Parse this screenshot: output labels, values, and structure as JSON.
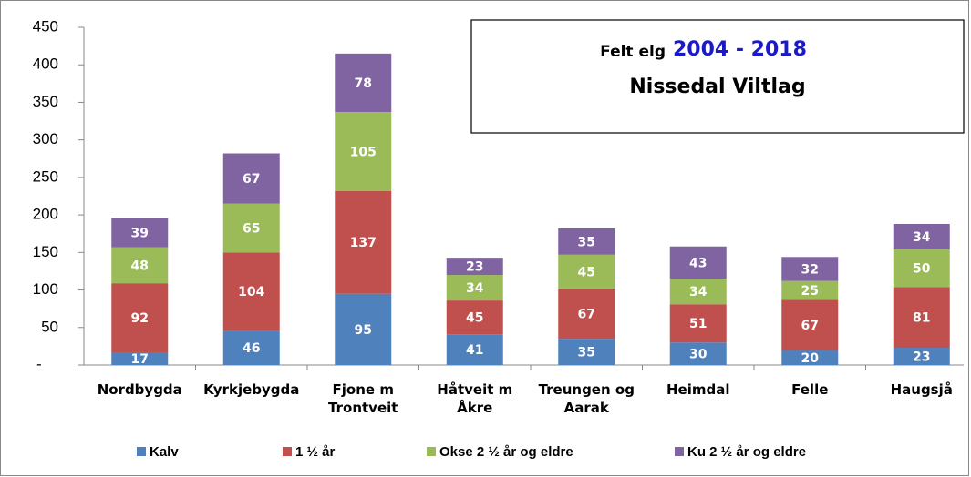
{
  "chart_data": {
    "type": "stacked_bar",
    "title": "Felt elg",
    "title_years": "2004 - 2018",
    "subtitle": "Nissedal Viltlag",
    "categories": [
      "Nordbygda",
      "Kyrkjebygda",
      "Fjone m\nTrontveit",
      "Håtveit m\nÅkre",
      "Treungen og\nAarak",
      "Heimdal",
      "Felle",
      "Haugsjå"
    ],
    "series": [
      {
        "name": "Kalv",
        "color": "#4f81bd",
        "values": [
          17,
          46,
          95,
          41,
          35,
          30,
          20,
          23
        ]
      },
      {
        "name": "1 ½ år",
        "color": "#c0504d",
        "values": [
          92,
          104,
          137,
          45,
          67,
          51,
          67,
          81
        ]
      },
      {
        "name": "Okse 2 ½ år og eldre",
        "color": "#9bbb59",
        "values": [
          48,
          65,
          105,
          34,
          45,
          34,
          25,
          50
        ]
      },
      {
        "name": "Ku 2 ½ år og eldre",
        "color": "#8064a2",
        "values": [
          39,
          67,
          78,
          23,
          35,
          43,
          32,
          34
        ]
      }
    ],
    "ylim": [
      0,
      450
    ],
    "yticks": [
      {
        "value": 0,
        "label": "-"
      },
      50,
      100,
      150,
      200,
      250,
      300,
      350,
      400,
      450
    ],
    "legend": "bottom"
  }
}
